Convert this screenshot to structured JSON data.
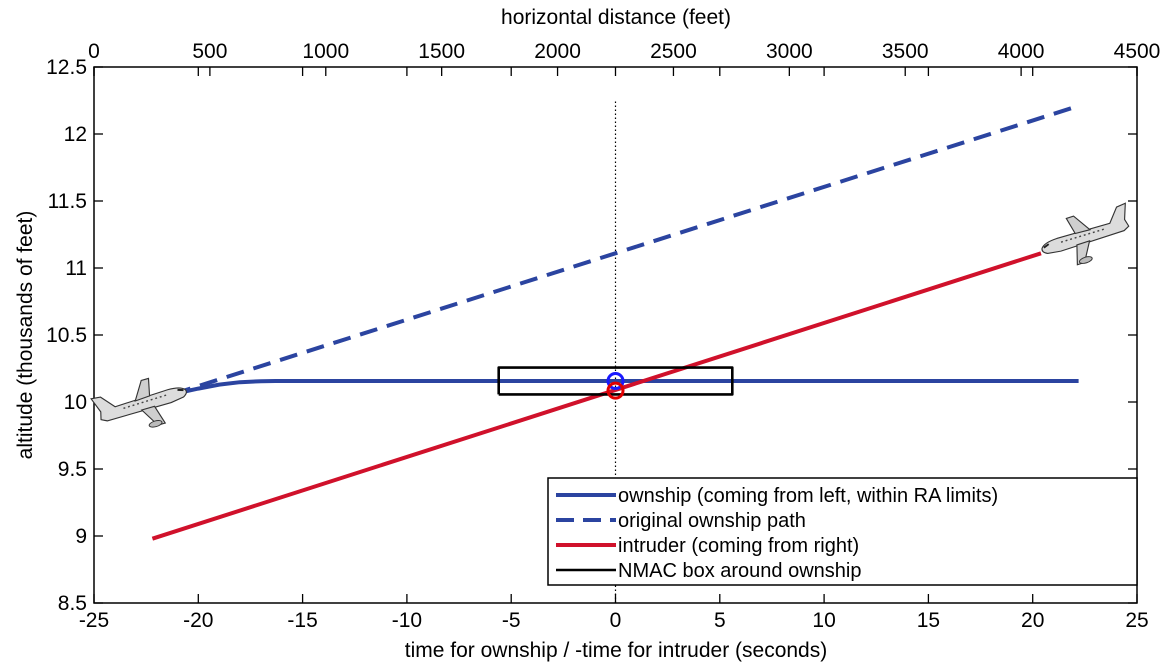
{
  "chart_data": {
    "type": "line",
    "title": "",
    "xlabel": "time for ownship / -time for intruder (seconds)",
    "x2label": "horizontal distance (feet)",
    "ylabel": "altitude (thousands of feet)",
    "xlim": [
      -25,
      25
    ],
    "x2lim": [
      0,
      4500
    ],
    "ylim": [
      8.5,
      12.5
    ],
    "xticks": [
      "-25",
      "-20",
      "-15",
      "-10",
      "-5",
      "0",
      "5",
      "10",
      "15",
      "20",
      "25"
    ],
    "x2ticks": [
      "0",
      "500",
      "1000",
      "1500",
      "2000",
      "2500",
      "3000",
      "3500",
      "4000",
      "4500"
    ],
    "yticks": [
      "8.5",
      "9",
      "9.5",
      "10",
      "10.5",
      "11",
      "11.5",
      "12",
      "12.5"
    ],
    "grid": false,
    "legend_position": "bottom-right",
    "series": [
      {
        "name": "ownship (coming from left, within RA limits)",
        "color": "#2b44a0",
        "style": "solid",
        "x": [
          -21.2,
          -20,
          -19,
          -18,
          -17,
          -16.3,
          -15,
          -10,
          -5,
          0,
          5,
          10,
          15,
          20,
          22.2
        ],
        "y": [
          10.06,
          10.1,
          10.13,
          10.148,
          10.155,
          10.157,
          10.157,
          10.157,
          10.157,
          10.157,
          10.157,
          10.157,
          10.157,
          10.157,
          10.157
        ]
      },
      {
        "name": "original ownship path",
        "color": "#2b44a0",
        "style": "dashed",
        "x": [
          -21.2,
          22.2
        ],
        "y": [
          10.06,
          12.21
        ]
      },
      {
        "name": "intruder (coming from right)",
        "color": "#d0112b",
        "style": "solid",
        "x": [
          -22.2,
          20.4
        ],
        "y": [
          8.98,
          11.11
        ]
      },
      {
        "name": "NMAC box around ownship",
        "color": "#000000",
        "style": "solid",
        "x": [
          -5.6,
          5.6,
          5.6,
          -5.6,
          -5.6
        ],
        "y": [
          10.057,
          10.057,
          10.257,
          10.257,
          10.057
        ]
      }
    ],
    "markers": [
      {
        "shape": "circle",
        "color": "#1a1aff",
        "x": 0,
        "y": 10.157
      },
      {
        "shape": "circle",
        "color": "#e00000",
        "x": 0,
        "y": 10.085
      }
    ],
    "reference_lines": [
      {
        "orientation": "vertical",
        "x": 0,
        "y_from": 8.5,
        "y_to": 12.25,
        "style": "dotted",
        "color": "#000000"
      }
    ],
    "icons": [
      "airplane-ownship-icon",
      "airplane-intruder-icon"
    ]
  }
}
